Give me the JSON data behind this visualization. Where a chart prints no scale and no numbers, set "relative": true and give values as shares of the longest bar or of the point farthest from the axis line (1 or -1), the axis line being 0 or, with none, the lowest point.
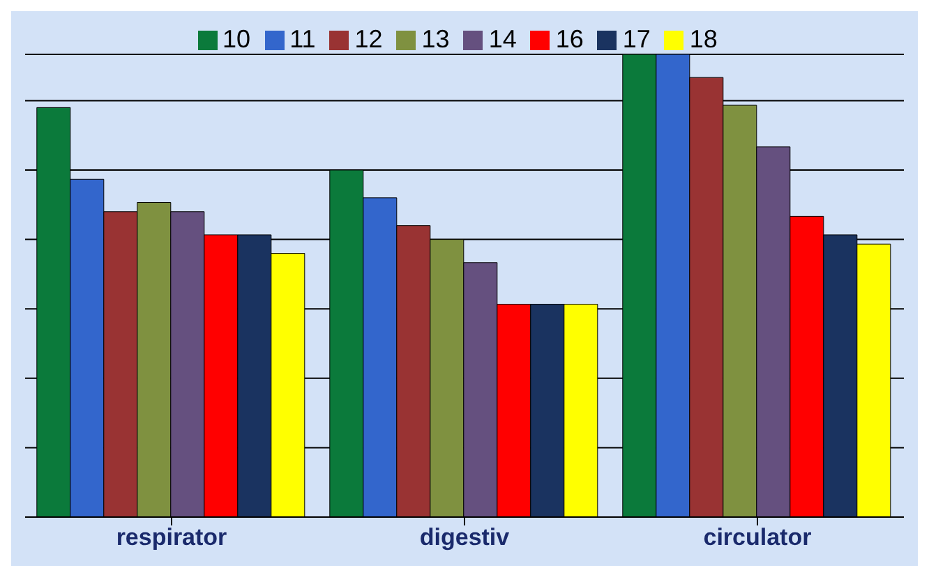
{
  "chart_data": {
    "type": "bar",
    "relative": true,
    "categories": [
      "respirator",
      "digestiv",
      "circulator"
    ],
    "series": [
      {
        "name": "10",
        "color": "#0b7a3b",
        "values": [
          0.885,
          0.75,
          1
        ]
      },
      {
        "name": "11",
        "color": "#3366cc",
        "values": [
          0.73,
          0.69,
          1
        ]
      },
      {
        "name": "12",
        "color": "#993333",
        "values": [
          0.66,
          0.63,
          0.95
        ]
      },
      {
        "name": "13",
        "color": "#7f9140",
        "values": [
          0.68,
          0.6,
          0.89
        ]
      },
      {
        "name": "14",
        "color": "#65507f",
        "values": [
          0.66,
          0.55,
          0.8
        ]
      },
      {
        "name": "16",
        "color": "#ff0000",
        "values": [
          0.61,
          0.46,
          0.65
        ]
      },
      {
        "name": "17",
        "color": "#1a3360",
        "values": [
          0.61,
          0.46,
          0.61
        ]
      },
      {
        "name": "18",
        "color": "#ffff00",
        "values": [
          0.57,
          0.46,
          0.59
        ]
      }
    ],
    "grid": "y",
    "legend": "top"
  }
}
